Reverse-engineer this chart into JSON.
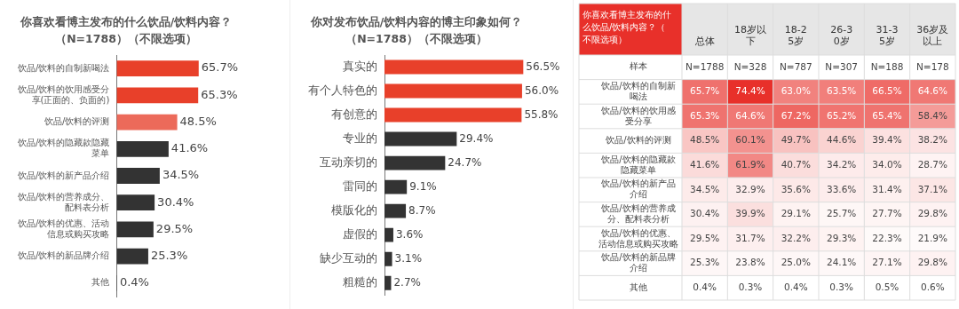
{
  "chart_data": [
    {
      "type": "bar",
      "orientation": "horizontal",
      "title": "你喜欢看博主发布的什么饮品/饮料内容？",
      "subtitle": "（N=1788）（不限选项）",
      "categories": [
        "饮品/饮料的自制新喝法",
        "饮品/饮料的饮用感受分享(正面的、负面的)",
        "饮品/饮料的评测",
        "饮品/饮料的隐藏款隐藏菜单",
        "饮品/饮料的新产品介绍",
        "饮品/饮料的营养成分、配料表分析",
        "饮品/饮料的优惠、活动信息或购买攻略",
        "饮品/饮料的新品牌介绍",
        "其他"
      ],
      "values": [
        65.7,
        65.3,
        48.5,
        41.6,
        34.5,
        30.4,
        29.5,
        25.3,
        0.4
      ],
      "colors": [
        "#e8402a",
        "#e8402a",
        "#ec6a5a",
        "#333333",
        "#333333",
        "#333333",
        "#333333",
        "#333333",
        "#333333"
      ],
      "value_labels": [
        "65.7%",
        "65.3%",
        "48.5%",
        "41.6%",
        "34.5%",
        "30.4%",
        "29.5%",
        "25.3%",
        "0.4%"
      ]
    },
    {
      "type": "bar",
      "orientation": "horizontal",
      "title": "你对发布饮品/饮料内容的博主印象如何？",
      "subtitle": "（N=1788）（不限选项）",
      "categories": [
        "真实的",
        "有个人特色的",
        "有创意的",
        "专业的",
        "互动亲切的",
        "雷同的",
        "模版化的",
        "虚假的",
        "缺少互动的",
        "粗糙的"
      ],
      "values": [
        56.5,
        56.0,
        55.8,
        29.4,
        24.7,
        9.1,
        8.7,
        3.6,
        3.1,
        2.7
      ],
      "colors": [
        "#e8402a",
        "#e8402a",
        "#e8402a",
        "#333333",
        "#333333",
        "#333333",
        "#333333",
        "#333333",
        "#333333",
        "#333333"
      ],
      "value_labels": [
        "56.5%",
        "56.0%",
        "55.8%",
        "29.4%",
        "24.7%",
        "9.1%",
        "8.7%",
        "3.6%",
        "3.1%",
        "2.7%"
      ]
    },
    {
      "type": "heatmap",
      "title": "你喜欢看博主发布的什么饮品/饮料内容？（不限选项）",
      "categories": [
        "总体",
        "18岁以下",
        "18-25岁",
        "26-30岁",
        "31-35岁",
        "36岁及以上"
      ],
      "y_categories": [
        "样本",
        "饮品/饮料的自制新喝法",
        "饮品/饮料的饮用感受分享",
        "饮品/饮料的评测",
        "饮品/饮料的隐藏款隐藏菜单",
        "饮品/饮料的新产品介绍",
        "饮品/饮料的营养成分、配料表分析",
        "饮品/饮料的优惠、活动信息或购买攻略",
        "饮品/饮料的新品牌介绍",
        "其他"
      ],
      "cells": [
        [
          null,
          null,
          null,
          null,
          null,
          null
        ],
        [
          65.7,
          74.4,
          63.0,
          63.5,
          66.5,
          64.6
        ],
        [
          65.3,
          64.6,
          67.2,
          65.2,
          65.4,
          58.4
        ],
        [
          48.5,
          60.1,
          49.7,
          44.6,
          39.4,
          38.2
        ],
        [
          41.6,
          61.9,
          40.7,
          34.2,
          34.0,
          28.7
        ],
        [
          34.5,
          32.9,
          35.6,
          33.6,
          31.4,
          37.1
        ],
        [
          30.4,
          39.9,
          29.1,
          25.7,
          27.7,
          29.8
        ],
        [
          29.5,
          31.7,
          32.2,
          29.3,
          22.3,
          21.9
        ],
        [
          25.3,
          23.8,
          25.0,
          24.1,
          27.1,
          29.8
        ],
        [
          0.4,
          0.3,
          0.4,
          0.3,
          0.5,
          0.6
        ]
      ],
      "cell_labels": [
        [
          "N=1788",
          "N=328",
          "N=787",
          "N=307",
          "N=188",
          "N=178"
        ],
        [
          "65.7%",
          "74.4%",
          "63.0%",
          "63.5%",
          "66.5%",
          "64.6%"
        ],
        [
          "65.3%",
          "64.6%",
          "67.2%",
          "65.2%",
          "65.4%",
          "58.4%"
        ],
        [
          "48.5%",
          "60.1%",
          "49.7%",
          "44.6%",
          "39.4%",
          "38.2%"
        ],
        [
          "41.6%",
          "61.9%",
          "40.7%",
          "34.2%",
          "34.0%",
          "28.7%"
        ],
        [
          "34.5%",
          "32.9%",
          "35.6%",
          "33.6%",
          "31.4%",
          "37.1%"
        ],
        [
          "30.4%",
          "39.9%",
          "29.1%",
          "25.7%",
          "27.7%",
          "29.8%"
        ],
        [
          "29.5%",
          "31.7%",
          "32.2%",
          "29.3%",
          "22.3%",
          "21.9%"
        ],
        [
          "25.3%",
          "23.8%",
          "25.0%",
          "24.1%",
          "27.1%",
          "29.8%"
        ],
        [
          "0.4%",
          "0.3%",
          "0.4%",
          "0.3%",
          "0.5%",
          "0.6%"
        ]
      ]
    }
  ]
}
